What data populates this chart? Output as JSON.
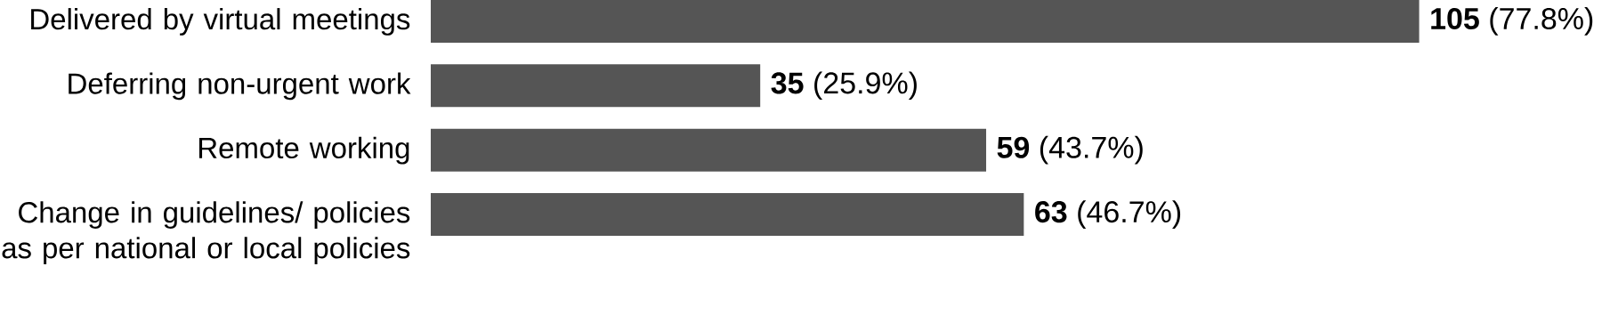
{
  "chart_data": {
    "type": "bar",
    "orientation": "horizontal",
    "tick_labels": "y",
    "categories": [
      "Delivered by virtual meetings",
      "Deferring non-urgent work",
      "Remote working",
      "Change in guidelines/ policies as per national or local policies"
    ],
    "values": [
      105,
      35,
      59,
      63
    ],
    "value_labels": [
      "**105** (77.8%)",
      "**35** (25.9%)",
      "**59** (43.7%)",
      "**63** (46.7%)"
    ],
    "color": "#555555"
  }
}
